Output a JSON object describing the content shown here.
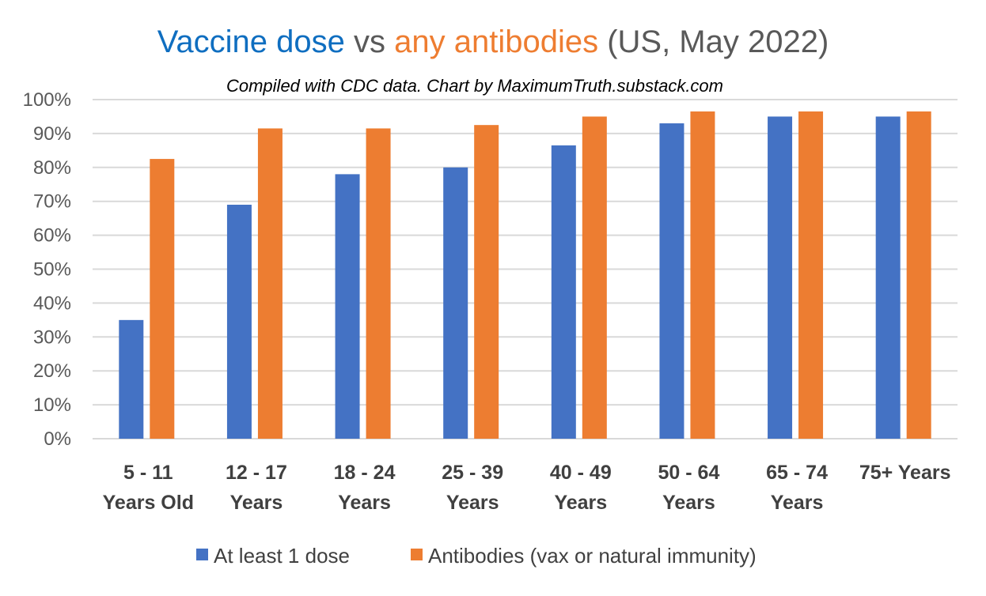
{
  "colors": {
    "title_blue": "#0f6ec0",
    "title_orange": "#ee7d31",
    "title_gray": "#595959",
    "series_blue": "#4472c4",
    "series_orange": "#ed7d31",
    "grid": "#d9d9d9"
  },
  "chart_data": {
    "type": "bar",
    "title_parts": [
      "Vaccine dose",
      " vs ",
      "any antibodies",
      " (US, May 2022)"
    ],
    "subtitle": "Compiled with CDC data. Chart by MaximumTruth.substack.com",
    "categories": [
      [
        "5 - 11",
        "Years Old"
      ],
      [
        "12 - 17",
        "Years"
      ],
      [
        "18 - 24",
        "Years"
      ],
      [
        "25 - 39",
        "Years"
      ],
      [
        "40 - 49",
        "Years"
      ],
      [
        "50 - 64",
        "Years"
      ],
      [
        "65 - 74",
        "Years"
      ],
      [
        "75+ Years"
      ]
    ],
    "series": [
      {
        "name": "At least 1 dose",
        "color": "#4472c4",
        "values": [
          35,
          69,
          78,
          80,
          86.5,
          93,
          95,
          95
        ]
      },
      {
        "name": "Antibodies (vax or natural immunity)",
        "color": "#ed7d31",
        "values": [
          82.5,
          91.5,
          91.5,
          92.5,
          95,
          96.5,
          96.5,
          96.5
        ]
      }
    ],
    "ylim": [
      0,
      100
    ],
    "yticks": [
      "0%",
      "10%",
      "20%",
      "30%",
      "40%",
      "50%",
      "60%",
      "70%",
      "80%",
      "90%",
      "100%"
    ],
    "grid": true,
    "legend": "bottom"
  }
}
